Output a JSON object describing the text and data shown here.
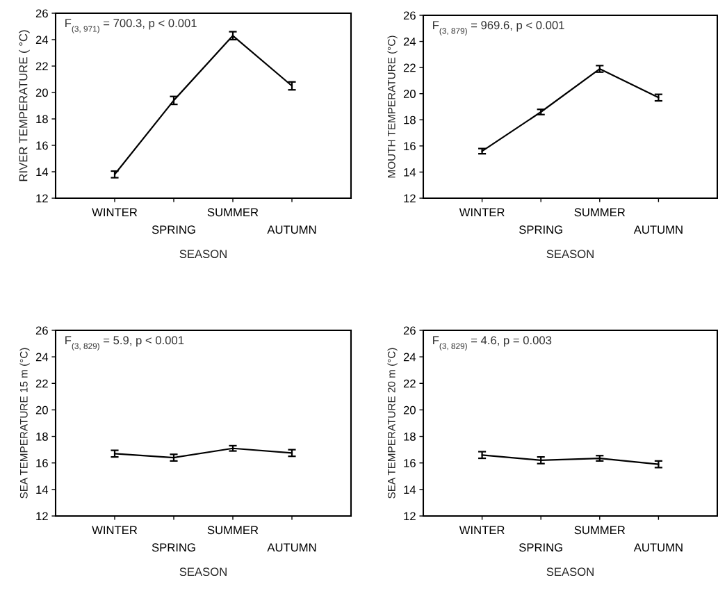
{
  "chart_data": [
    {
      "type": "line",
      "categories": [
        "WINTER",
        "SPRING",
        "SUMMER",
        "AUTUMN"
      ],
      "xlabel": "SEASON",
      "ylabel": "RIVER TEMPERATURE ( °C)",
      "values": [
        13.8,
        19.4,
        24.3,
        20.5
      ],
      "errors": [
        0.25,
        0.3,
        0.3,
        0.3
      ],
      "color": "#000000",
      "ylim": [
        12,
        26
      ],
      "yticks": [
        12,
        14,
        16,
        18,
        20,
        22,
        24,
        26
      ],
      "marker": "none",
      "grid": false,
      "annotations": [
        "F$_{(3, 971)}$ = 700.3, p < 0.001"
      ]
    },
    {
      "type": "line",
      "categories": [
        "WINTER",
        "SPRING",
        "SUMMER",
        "AUTUMN"
      ],
      "xlabel": "SEASON",
      "ylabel": "MOUTH TEMPERATURE (°C)",
      "values": [
        15.6,
        18.6,
        21.9,
        19.7
      ],
      "errors": [
        0.2,
        0.2,
        0.25,
        0.25
      ],
      "color": "#000000",
      "ylim": [
        12,
        26
      ],
      "yticks": [
        12,
        14,
        16,
        18,
        20,
        22,
        24,
        26
      ],
      "marker": "none",
      "grid": false,
      "annotations": [
        "F$_{(3, 879)}$ = 969.6, p < 0.001"
      ]
    },
    {
      "type": "line",
      "categories": [
        "WINTER",
        "SPRING",
        "SUMMER",
        "AUTUMN"
      ],
      "xlabel": "SEASON",
      "ylabel": "SEA TEMPERATURE 15 m (°C)",
      "values": [
        16.7,
        16.4,
        17.1,
        16.75
      ],
      "errors": [
        0.25,
        0.25,
        0.2,
        0.25
      ],
      "color": "#000000",
      "ylim": [
        12,
        26
      ],
      "yticks": [
        12,
        14,
        16,
        18,
        20,
        22,
        24,
        26
      ],
      "marker": "none",
      "grid": false,
      "annotations": [
        "F$_{(3, 829)}$ = 5.9, p < 0.001"
      ]
    },
    {
      "type": "line",
      "categories": [
        "WINTER",
        "SPRING",
        "SUMMER",
        "AUTUMN"
      ],
      "xlabel": "SEASON",
      "ylabel": "SEA TEMPERATURE 20 m (°C)",
      "values": [
        16.6,
        16.2,
        16.35,
        15.9
      ],
      "errors": [
        0.25,
        0.25,
        0.2,
        0.25
      ],
      "color": "#000000",
      "ylim": [
        12,
        26
      ],
      "yticks": [
        12,
        14,
        16,
        18,
        20,
        22,
        24,
        26
      ],
      "marker": "none",
      "grid": false,
      "annotations": [
        "F$_{(3, 829)}$ = 4.6, p = 0.003"
      ]
    }
  ]
}
